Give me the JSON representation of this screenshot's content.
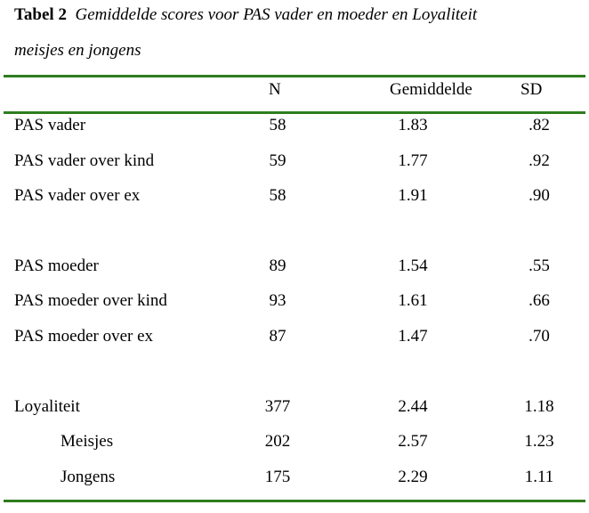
{
  "caption": {
    "label": "Tabel 2",
    "title_line1": "Gemiddelde scores voor PAS vader en moeder en Loyaliteit",
    "title_line2": "meisjes en jongens"
  },
  "header": {
    "n": "N",
    "mean": "Gemiddelde",
    "sd": "SD"
  },
  "rows": [
    {
      "label": "PAS vader",
      "n": "58",
      "mean": "1.83",
      "sd": ".82"
    },
    {
      "label": "PAS vader over kind",
      "n": "59",
      "mean": "1.77",
      "sd": ".92"
    },
    {
      "label": "PAS vader over ex",
      "n": "58",
      "mean": "1.91",
      "sd": ".90"
    },
    {
      "label": "PAS moeder",
      "n": "89",
      "mean": "1.54",
      "sd": ".55"
    },
    {
      "label": "PAS moeder over kind",
      "n": "93",
      "mean": "1.61",
      "sd": ".66"
    },
    {
      "label": "PAS moeder over ex",
      "n": "87",
      "mean": "1.47",
      "sd": ".70"
    },
    {
      "label": "Loyaliteit",
      "n": "377",
      "mean": "2.44",
      "sd": "1.18"
    },
    {
      "label": "Meisjes",
      "n": "202",
      "mean": "2.57",
      "sd": "1.23"
    },
    {
      "label": "Jongens",
      "n": "175",
      "mean": "2.29",
      "sd": "1.11"
    }
  ],
  "colors": {
    "rule": "#2e7d1f",
    "text": "#000000"
  }
}
